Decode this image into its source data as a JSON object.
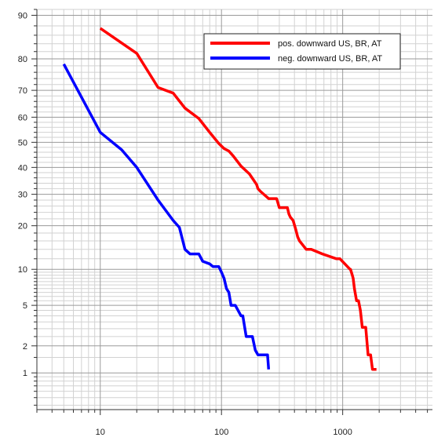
{
  "chart_data": {
    "type": "line",
    "title": "",
    "xlabel": "",
    "ylabel": "",
    "x_scale": "log",
    "y_scale": "probability (normal), percent exceedance",
    "xlim": [
      3,
      5500
    ],
    "ylim": [
      0.35,
      91
    ],
    "grid": true,
    "legend_position": "top-right",
    "x_tick_labels": [
      {
        "value": 10,
        "label": "10"
      },
      {
        "value": 100,
        "label": "100"
      },
      {
        "value": 1000,
        "label": "1000"
      }
    ],
    "y_tick_labels": [
      {
        "value": 90,
        "label": "90"
      },
      {
        "value": 80,
        "label": "80"
      },
      {
        "value": 70,
        "label": "70"
      },
      {
        "value": 60,
        "label": "60"
      },
      {
        "value": 50,
        "label": "50"
      },
      {
        "value": 40,
        "label": "40"
      },
      {
        "value": 30,
        "label": "30"
      },
      {
        "value": 20,
        "label": "20"
      },
      {
        "value": 10,
        "label": "10"
      },
      {
        "value": 5,
        "label": "5"
      },
      {
        "value": 2,
        "label": "2"
      },
      {
        "value": 1,
        "label": "1"
      }
    ],
    "series": [
      {
        "name": "pos. downward US, BR, AT",
        "color": "#ff0000",
        "x": [
          10,
          20,
          30,
          40,
          50,
          65,
          80,
          95,
          105,
          115,
          125,
          145,
          170,
          185,
          195,
          200,
          210,
          245,
          285,
          300,
          350,
          360,
          370,
          390,
          410,
          425,
          440,
          500,
          550,
          680,
          890,
          900,
          950,
          1150,
          1160,
          1200,
          1220,
          1250,
          1300,
          1350,
          1400,
          1450,
          1550,
          1620,
          1700,
          1760,
          1900
        ],
        "y": [
          87.5,
          81.5,
          71,
          69,
          63.5,
          59.5,
          54,
          49.5,
          47.5,
          46.5,
          44.5,
          40.5,
          37.5,
          35,
          33.5,
          32,
          31,
          28.5,
          28.5,
          25.5,
          25.5,
          23.5,
          22.5,
          21.5,
          19,
          17,
          16,
          14,
          14,
          13,
          12,
          12,
          12,
          10,
          10,
          9,
          8.5,
          7,
          5.5,
          5.5,
          4.5,
          3.1,
          3.1,
          1.6,
          1.6,
          1.1,
          1.1
        ]
      },
      {
        "name": "neg. downward US, BR, AT",
        "color": "#0000ff",
        "x": [
          5,
          10,
          15,
          20,
          30,
          40,
          45,
          50,
          55,
          65,
          70,
          80,
          85,
          95,
          100,
          105,
          110,
          115,
          120,
          130,
          145,
          150,
          160,
          165,
          180,
          190,
          200,
          220,
          240,
          245
        ],
        "y": [
          78.5,
          54,
          47,
          40,
          28,
          21.5,
          19.5,
          14,
          13,
          13,
          11.5,
          11,
          10.5,
          10.5,
          9.5,
          8.5,
          7,
          6.5,
          5,
          5,
          4,
          4,
          2.5,
          2.5,
          2.5,
          1.8,
          1.6,
          1.6,
          1.6,
          1.1
        ]
      }
    ]
  }
}
